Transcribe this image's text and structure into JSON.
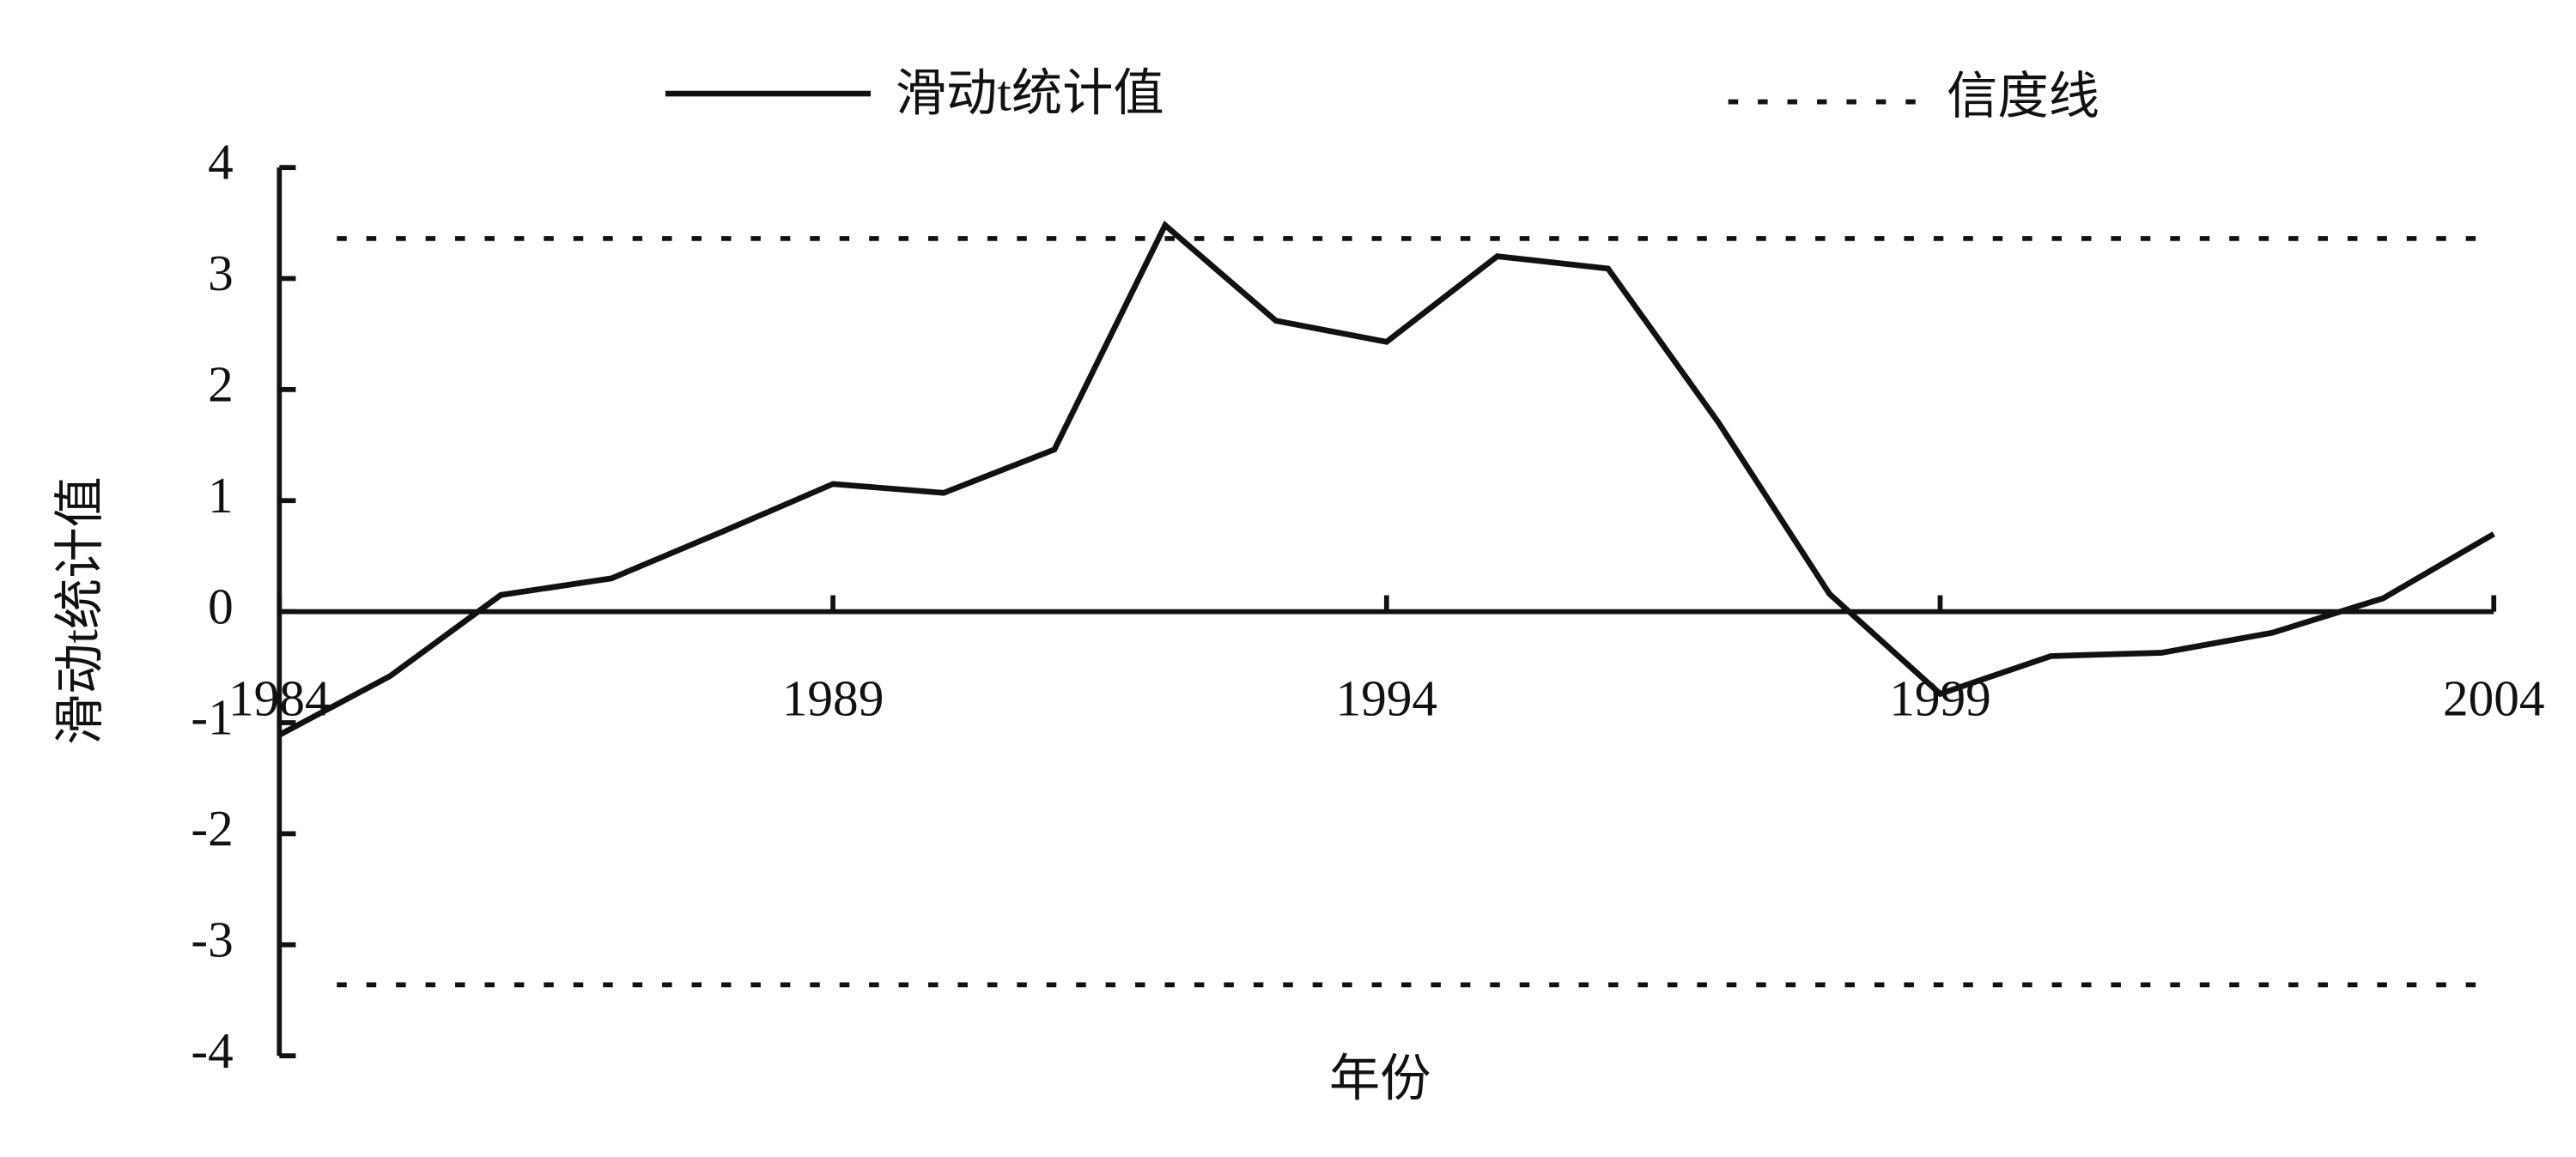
{
  "chart_data": {
    "type": "line",
    "x": [
      1984,
      1985,
      1986,
      1987,
      1988,
      1989,
      1990,
      1991,
      1992,
      1993,
      1994,
      1995,
      1996,
      1997,
      1998,
      1999,
      2000,
      2001,
      2002,
      2003,
      2004
    ],
    "series": [
      {
        "name": "滑动t统计值",
        "color": "#111111",
        "values": [
          -1.11,
          -0.58,
          0.15,
          0.3,
          0.72,
          1.15,
          1.07,
          1.46,
          3.48,
          2.62,
          2.43,
          3.2,
          3.09,
          1.7,
          0.16,
          -0.74,
          -0.4,
          -0.37,
          -0.19,
          0.12,
          0.7
        ]
      }
    ],
    "reference_lines": {
      "name": "信度线",
      "color": "#111111",
      "values": [
        3.36,
        -3.36
      ]
    },
    "xlabel": "年份",
    "ylabel": "滑动t统计值",
    "xlim": [
      1984,
      2004
    ],
    "xticks": [
      1984,
      1989,
      1994,
      1999,
      2004
    ],
    "ylim": [
      -4,
      4
    ],
    "yticks": [
      -4,
      -3,
      -2,
      -1,
      0,
      1,
      2,
      3,
      4
    ],
    "legend": "top"
  }
}
